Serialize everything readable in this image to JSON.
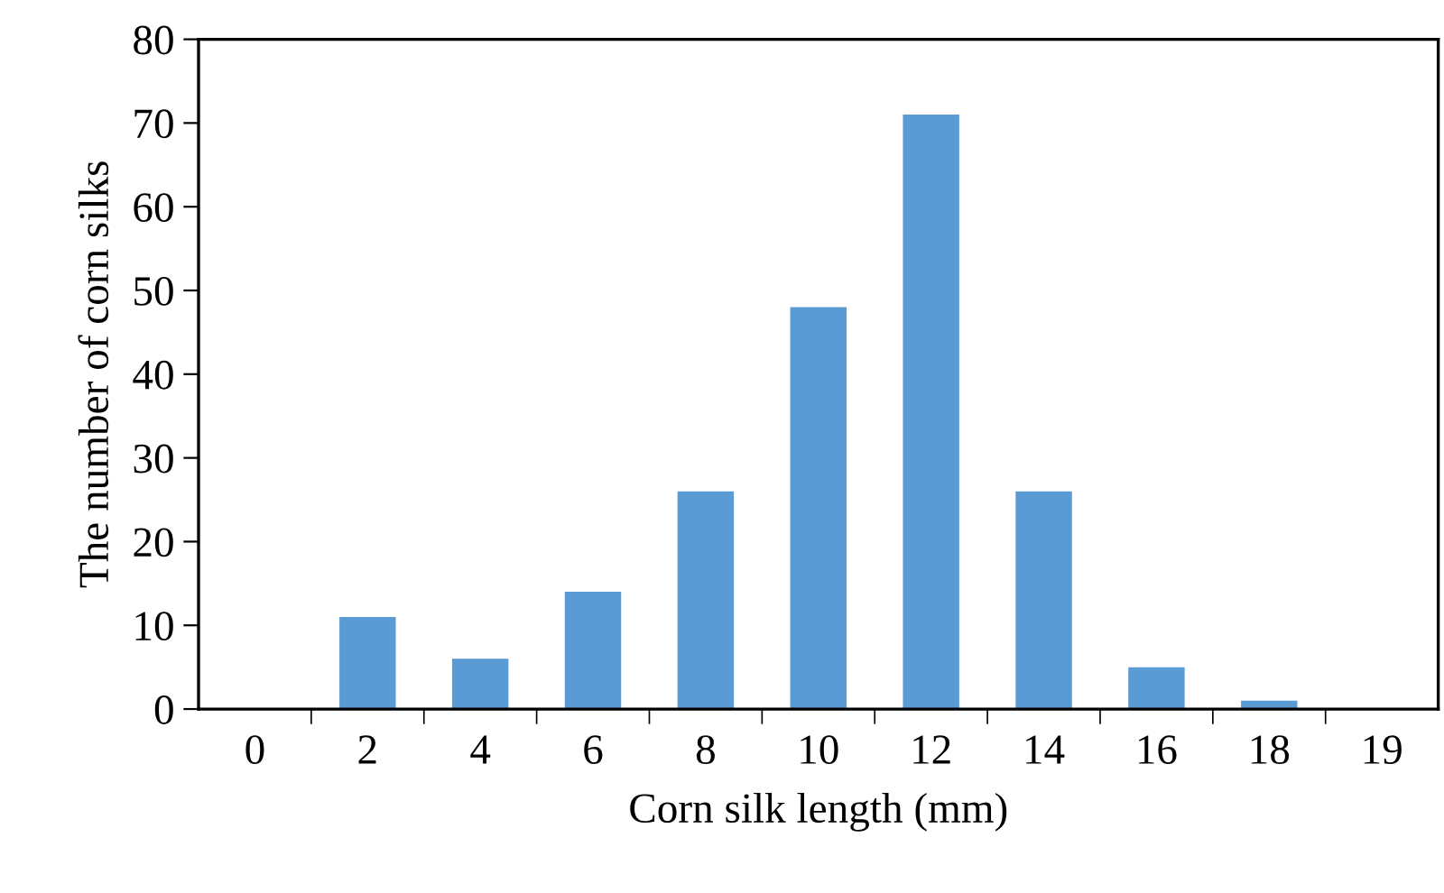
{
  "chart_data": {
    "type": "bar",
    "xlabel": "Corn silk length (mm)",
    "ylabel": "The number of corn silks",
    "categories": [
      "0",
      "2",
      "4",
      "6",
      "8",
      "10",
      "12",
      "14",
      "16",
      "18",
      "19"
    ],
    "values": [
      0,
      11,
      6,
      14,
      26,
      48,
      71,
      26,
      5,
      1,
      0
    ],
    "color": "#5b9bd5",
    "ylim": [
      0,
      80
    ],
    "yticks": [
      0,
      10,
      20,
      30,
      40,
      50,
      60,
      70,
      80
    ],
    "grid": false
  }
}
